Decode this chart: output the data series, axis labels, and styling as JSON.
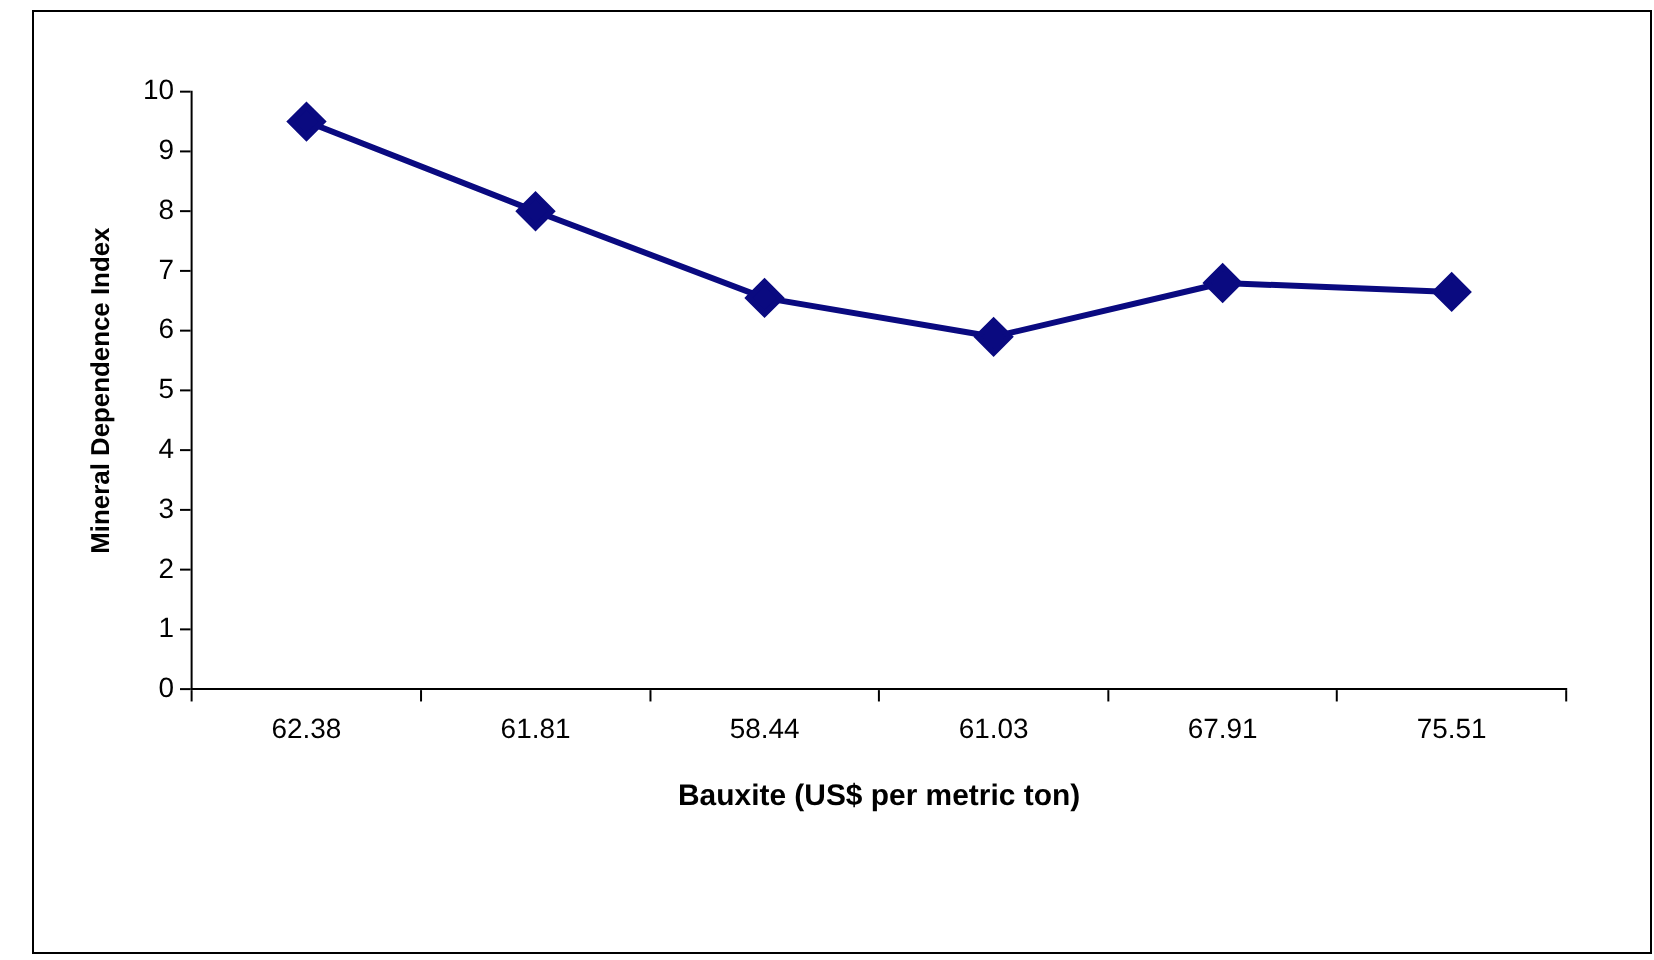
{
  "chart_data": {
    "type": "line",
    "xlabel": "Bauxite (US$ per metric ton)",
    "ylabel": "Mineral Dependence Index",
    "categories": [
      "62.38",
      "61.81",
      "58.44",
      "61.03",
      "67.91",
      "75.51"
    ],
    "series": [
      {
        "color": "#0a0a80",
        "values": [
          9.5,
          8.0,
          6.55,
          5.9,
          6.8,
          6.65
        ]
      }
    ],
    "ylim": [
      0,
      10
    ],
    "yticks": [
      0,
      1,
      2,
      3,
      4,
      5,
      6,
      7,
      8,
      9,
      10
    ],
    "grid": false,
    "marker": "diamond",
    "line_style": "solid"
  }
}
